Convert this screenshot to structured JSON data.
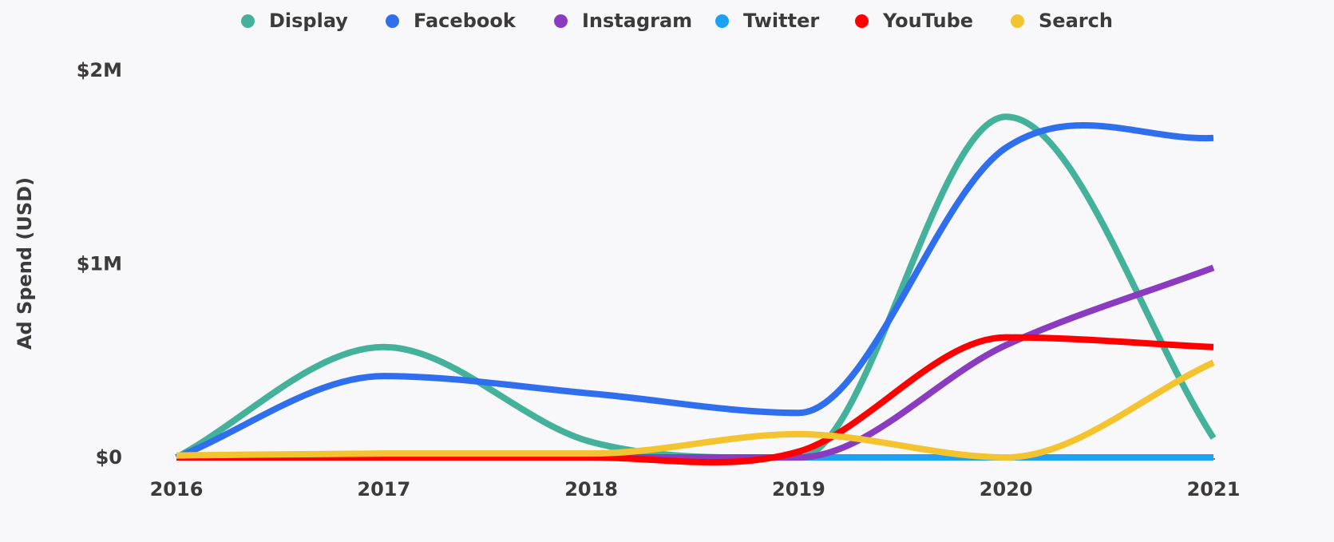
{
  "chart_data": {
    "type": "line",
    "title": "",
    "xlabel": "",
    "ylabel": "Ad Spend (USD)",
    "x": [
      2016,
      2017,
      2018,
      2019,
      2020,
      2021
    ],
    "x_tick_labels": [
      "2016",
      "2017",
      "2018",
      "2019",
      "2020",
      "2021"
    ],
    "y_ticks": [
      0,
      1000000,
      2000000
    ],
    "y_tick_labels": [
      "$0",
      "$1M",
      "$2M"
    ],
    "ylim": [
      0,
      2000000
    ],
    "xlim": [
      2016,
      2021
    ],
    "grid": false,
    "legend_position": "top",
    "smooth": true,
    "series": [
      {
        "name": "Display",
        "color": "#44b29b",
        "values": [
          0,
          570000,
          80000,
          0,
          1760000,
          100000
        ]
      },
      {
        "name": "Facebook",
        "color": "#2f6fed",
        "values": [
          0,
          420000,
          330000,
          230000,
          1600000,
          1650000
        ]
      },
      {
        "name": "Instagram",
        "color": "#8a3bbf",
        "values": [
          0,
          0,
          0,
          0,
          580000,
          980000
        ]
      },
      {
        "name": "Twitter",
        "color": "#1da1f2",
        "values": [
          0,
          0,
          0,
          0,
          0,
          0
        ]
      },
      {
        "name": "YouTube",
        "color": "#ff0000",
        "values": [
          0,
          0,
          0,
          30000,
          620000,
          570000
        ]
      },
      {
        "name": "Search",
        "color": "#f4c430",
        "values": [
          10000,
          20000,
          20000,
          120000,
          0,
          490000
        ]
      }
    ]
  }
}
